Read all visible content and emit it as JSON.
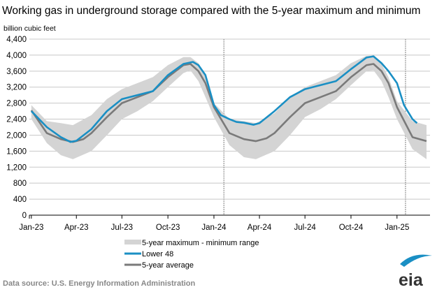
{
  "chart_data": {
    "type": "area",
    "title": "Working gas in underground  storage compared with the 5-year maximum and minimum",
    "ylabel": "billion cubic feet",
    "xlabel": "",
    "ylim": [
      0,
      4400
    ],
    "yticks": [
      "0",
      "400",
      "800",
      "1,200",
      "1,600",
      "2,000",
      "2,400",
      "2,800",
      "3,200",
      "3,600",
      "4,000",
      "4,400"
    ],
    "xticks": [
      {
        "date": "2023-01-01",
        "label": "Jan-23"
      },
      {
        "date": "2023-04-01",
        "label": "Apr-23"
      },
      {
        "date": "2023-07-01",
        "label": "Jul-23"
      },
      {
        "date": "2023-10-01",
        "label": "Oct-23"
      },
      {
        "date": "2024-01-01",
        "label": "Jan-24"
      },
      {
        "date": "2024-04-01",
        "label": "Apr-24"
      },
      {
        "date": "2024-07-01",
        "label": "Jul-24"
      },
      {
        "date": "2024-10-01",
        "label": "Oct-24"
      },
      {
        "date": "2025-01-01",
        "label": "Jan-25"
      }
    ],
    "xlim": [
      "2022-12-28",
      "2025-03-08"
    ],
    "grid": true,
    "reference_lines": [
      "2024-01-21",
      "2025-01-18"
    ],
    "legend_position": "bottom",
    "series": [
      {
        "name": "5-year maximum - minimum range",
        "kind": "band",
        "color": "#d4d4d4",
        "dates": [
          "2023-01-01",
          "2023-02-01",
          "2023-03-01",
          "2023-03-25",
          "2023-05-01",
          "2023-06-01",
          "2023-07-01",
          "2023-08-01",
          "2023-09-01",
          "2023-10-01",
          "2023-11-01",
          "2023-11-15",
          "2023-12-01",
          "2023-12-15",
          "2024-01-01",
          "2024-02-01",
          "2024-03-01",
          "2024-03-25",
          "2024-05-01",
          "2024-06-01",
          "2024-07-01",
          "2024-08-01",
          "2024-09-01",
          "2024-10-01",
          "2024-11-01",
          "2024-11-15",
          "2024-12-01",
          "2024-12-15",
          "2025-01-01",
          "2025-02-01",
          "2025-03-01"
        ],
        "max": [
          2750,
          2350,
          2300,
          2250,
          2500,
          2900,
          3150,
          3300,
          3450,
          3750,
          3950,
          3950,
          3800,
          3500,
          2800,
          2400,
          2350,
          2300,
          2550,
          2950,
          3200,
          3350,
          3500,
          3800,
          3980,
          3980,
          3780,
          3450,
          2850,
          2350,
          2250
        ],
        "min": [
          2400,
          1800,
          1500,
          1400,
          1600,
          2000,
          2400,
          2600,
          2850,
          3200,
          3550,
          3620,
          3350,
          2950,
          2450,
          1750,
          1450,
          1400,
          1600,
          2000,
          2450,
          2650,
          2900,
          3250,
          3600,
          3620,
          3350,
          2950,
          2400,
          1650,
          1400
        ]
      },
      {
        "name": "Lower 48",
        "kind": "line",
        "color": "#1a8fc4",
        "dates": [
          "2023-01-01",
          "2023-02-01",
          "2023-03-01",
          "2023-03-20",
          "2023-04-01",
          "2023-05-01",
          "2023-06-01",
          "2023-07-01",
          "2023-08-01",
          "2023-09-01",
          "2023-10-01",
          "2023-11-01",
          "2023-11-20",
          "2023-12-01",
          "2023-12-15",
          "2024-01-01",
          "2024-01-15",
          "2024-02-01",
          "2024-02-15",
          "2024-03-01",
          "2024-03-20",
          "2024-04-01",
          "2024-05-01",
          "2024-06-01",
          "2024-07-01",
          "2024-08-01",
          "2024-09-01",
          "2024-10-01",
          "2024-11-01",
          "2024-11-15",
          "2024-12-01",
          "2024-12-15",
          "2025-01-01",
          "2025-01-15",
          "2025-02-01",
          "2025-02-10"
        ],
        "values": [
          2600,
          2200,
          1950,
          1830,
          1860,
          2150,
          2600,
          2900,
          3000,
          3100,
          3500,
          3780,
          3830,
          3750,
          3500,
          2750,
          2500,
          2400,
          2330,
          2310,
          2260,
          2300,
          2600,
          2950,
          3150,
          3250,
          3350,
          3650,
          3940,
          3970,
          3800,
          3600,
          3300,
          2750,
          2400,
          2300
        ]
      },
      {
        "name": "5-year average",
        "kind": "line",
        "color": "#7a7a7a",
        "dates": [
          "2023-01-01",
          "2023-02-01",
          "2023-03-01",
          "2023-03-25",
          "2023-04-15",
          "2023-05-01",
          "2023-06-01",
          "2023-07-01",
          "2023-08-01",
          "2023-09-01",
          "2023-10-01",
          "2023-11-01",
          "2023-11-15",
          "2023-12-01",
          "2023-12-15",
          "2024-01-01",
          "2024-02-01",
          "2024-03-01",
          "2024-03-25",
          "2024-04-15",
          "2024-05-01",
          "2024-06-01",
          "2024-07-01",
          "2024-08-01",
          "2024-09-01",
          "2024-10-01",
          "2024-11-01",
          "2024-11-15",
          "2024-12-01",
          "2024-12-15",
          "2025-01-01",
          "2025-02-01",
          "2025-03-01"
        ],
        "values": [
          2620,
          2050,
          1900,
          1830,
          1900,
          2050,
          2450,
          2800,
          2950,
          3100,
          3450,
          3750,
          3780,
          3600,
          3300,
          2700,
          2050,
          1900,
          1850,
          1920,
          2050,
          2450,
          2800,
          2950,
          3100,
          3450,
          3750,
          3780,
          3600,
          3300,
          2700,
          1950,
          1850
        ]
      }
    ]
  },
  "source": "Data source:  U.S. Energy Information Administration",
  "logo": "eia"
}
